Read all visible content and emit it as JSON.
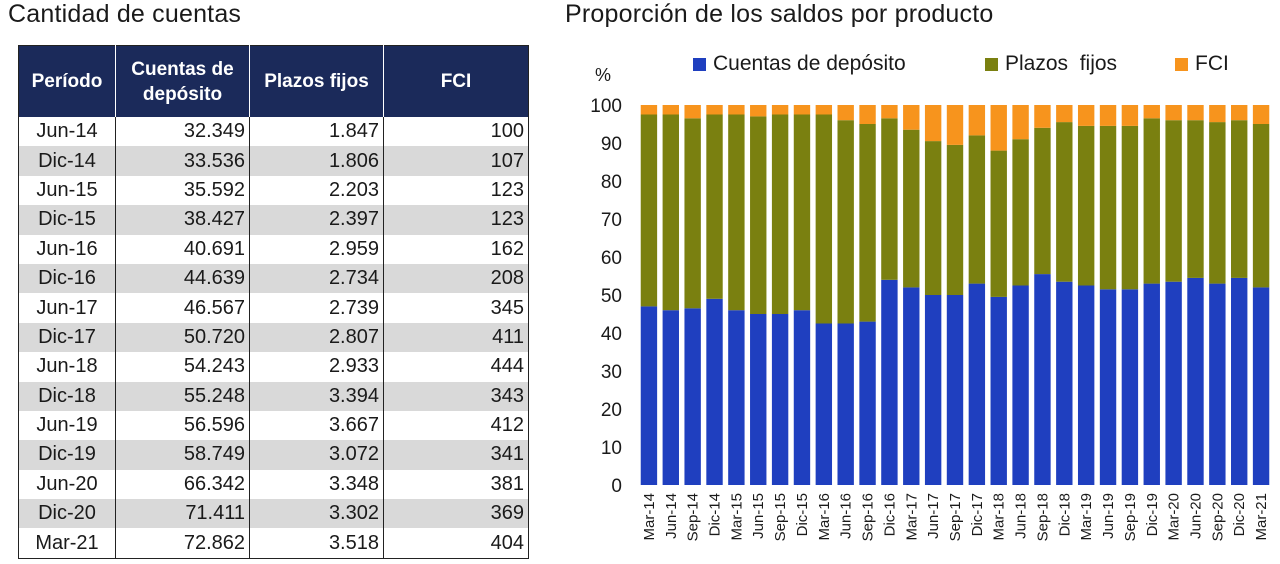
{
  "table": {
    "title": "Cantidad de cuentas",
    "headers": [
      "Período",
      "Cuentas de depósito",
      "Plazos fijos",
      "FCI"
    ],
    "rows": [
      [
        "Jun-14",
        "32.349",
        "1.847",
        "100"
      ],
      [
        "Dic-14",
        "33.536",
        "1.806",
        "107"
      ],
      [
        "Jun-15",
        "35.592",
        "2.203",
        "123"
      ],
      [
        "Dic-15",
        "38.427",
        "2.397",
        "123"
      ],
      [
        "Jun-16",
        "40.691",
        "2.959",
        "162"
      ],
      [
        "Dic-16",
        "44.639",
        "2.734",
        "208"
      ],
      [
        "Jun-17",
        "46.567",
        "2.739",
        "345"
      ],
      [
        "Dic-17",
        "50.720",
        "2.807",
        "411"
      ],
      [
        "Jun-18",
        "54.243",
        "2.933",
        "444"
      ],
      [
        "Dic-18",
        "55.248",
        "3.394",
        "343"
      ],
      [
        "Jun-19",
        "56.596",
        "3.667",
        "412"
      ],
      [
        "Dic-19",
        "58.749",
        "3.072",
        "341"
      ],
      [
        "Jun-20",
        "66.342",
        "3.348",
        "381"
      ],
      [
        "Dic-20",
        "71.411",
        "3.302",
        "369"
      ],
      [
        "Mar-21",
        "72.862",
        "3.518",
        "404"
      ]
    ]
  },
  "chart_data": {
    "type": "bar",
    "stacked": true,
    "title": "Proporción de los saldos por producto",
    "ylabel": "%",
    "xlabel": "",
    "ylim": [
      0,
      100
    ],
    "yticks": [
      0,
      10,
      20,
      30,
      40,
      50,
      60,
      70,
      80,
      90,
      100
    ],
    "legend_position": "top",
    "categories": [
      "Mar-14",
      "Jun-14",
      "Sep-14",
      "Dic-14",
      "Mar-15",
      "Jun-15",
      "Sep-15",
      "Dic-15",
      "Mar-16",
      "Jun-16",
      "Sep-16",
      "Dic-16",
      "Mar-17",
      "Jun-17",
      "Sep-17",
      "Dic-17",
      "Mar-18",
      "Jun-18",
      "Sep-18",
      "Dic-18",
      "Mar-19",
      "Jun-19",
      "Sep-19",
      "Dic-19",
      "Mar-20",
      "Jun-20",
      "Sep-20",
      "Dic-20",
      "Mar-21"
    ],
    "series": [
      {
        "name": "Cuentas de depósito",
        "color": "#1f3fbf",
        "values": [
          47,
          46,
          46.5,
          49,
          46,
          45,
          45,
          46,
          42.5,
          42.5,
          43,
          54,
          52,
          50,
          50,
          53,
          49.5,
          52.5,
          55.5,
          53.5,
          52.5,
          51.5,
          51.5,
          53,
          53.5,
          54.5,
          53,
          54.5,
          52
        ]
      },
      {
        "name": "Plazos  fijos",
        "color": "#7a8010",
        "values": [
          50.5,
          51.5,
          50,
          48.5,
          51.5,
          52,
          52.5,
          51.5,
          55,
          53.5,
          52,
          42.5,
          41.5,
          40.5,
          39.5,
          39,
          38.5,
          38.5,
          38.5,
          42,
          42,
          43,
          43,
          43.5,
          42.5,
          41.5,
          42.5,
          41.5,
          43
        ]
      },
      {
        "name": "FCI",
        "color": "#f7941d",
        "values": [
          2.5,
          2.5,
          3.5,
          2.5,
          2.5,
          3,
          2.5,
          2.5,
          2.5,
          4,
          5,
          3.5,
          6.5,
          9.5,
          10.5,
          8,
          12,
          9,
          6,
          4.5,
          5.5,
          5.5,
          5.5,
          3.5,
          4,
          4,
          4.5,
          4,
          5
        ]
      }
    ]
  }
}
